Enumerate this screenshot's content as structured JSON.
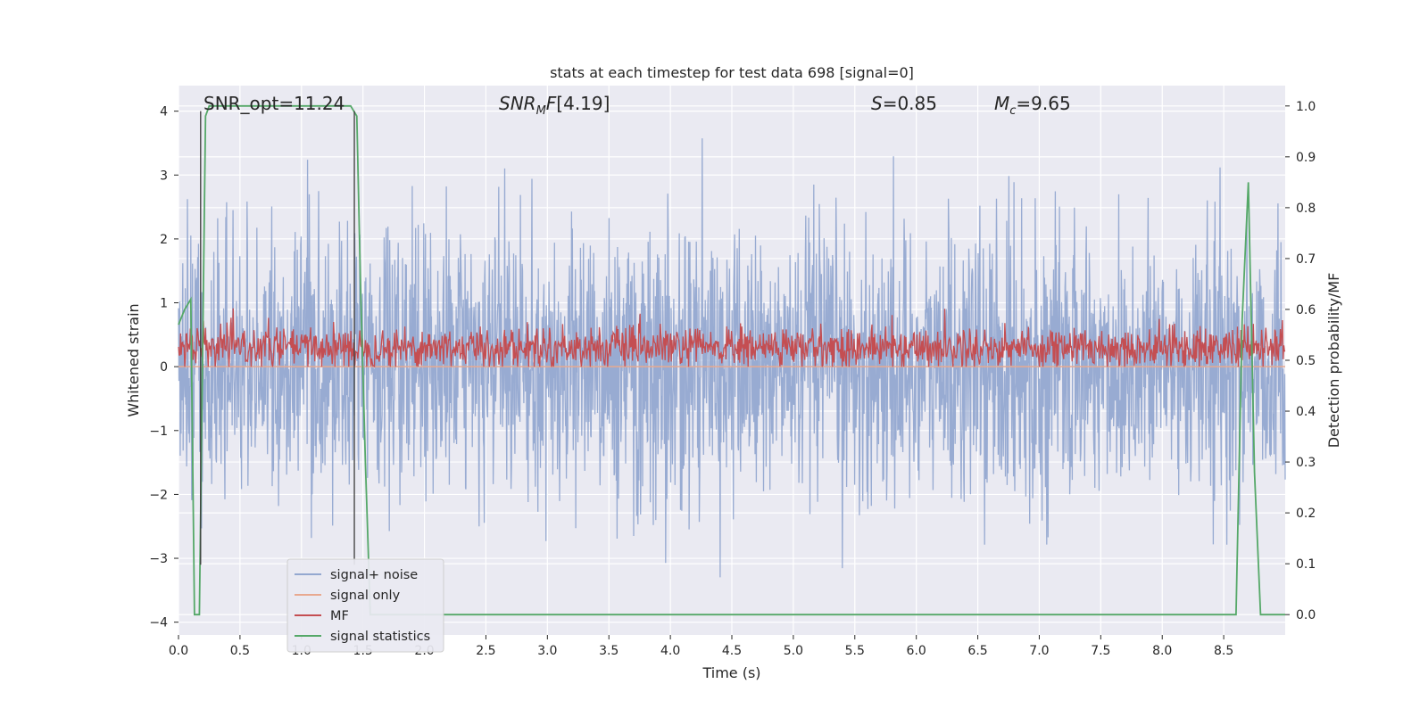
{
  "chart_data": {
    "type": "line",
    "title": "stats at each timestep for test data 698 [signal=0]",
    "xlabel": "Time (s)",
    "ylabel_left": "Whitened strain",
    "ylabel_right": "Detection probability/MF",
    "xlim": [
      0,
      9.0
    ],
    "ylim_left": [
      -4.2,
      4.4
    ],
    "ylim_right": [
      -0.04,
      1.04
    ],
    "x_ticks": [
      "0.0",
      "0.5",
      "1.0",
      "1.5",
      "2.0",
      "2.5",
      "3.0",
      "3.5",
      "4.0",
      "4.5",
      "5.0",
      "5.5",
      "6.0",
      "6.5",
      "7.0",
      "7.5",
      "8.0",
      "8.5"
    ],
    "left_ticks": [
      "4",
      "3",
      "2",
      "1",
      "0",
      "−1",
      "−2",
      "−3",
      "−4"
    ],
    "right_ticks": [
      "1.0",
      "0.9",
      "0.8",
      "0.7",
      "0.6",
      "0.5",
      "0.4",
      "0.3",
      "0.2",
      "0.1",
      "0.0"
    ],
    "grid": true,
    "legend_position": "lower-left",
    "annotations": {
      "snr_opt": "SNR_opt=11.24",
      "snr_mf": "[4.19]",
      "s": "=0.85",
      "mc": "=9.65"
    },
    "vlines_x": [
      0.18,
      1.43
    ],
    "series": [
      {
        "name": "signal+ noise",
        "color": "#94a8d0",
        "axis": "left",
        "description_stats": {
          "mean": 0.0,
          "spread_sigma": 1.05,
          "peak_max": 4.0,
          "peak_min": -3.6
        }
      },
      {
        "name": "signal only",
        "color": "#e8a990",
        "axis": "left",
        "values_constant": 0.0
      },
      {
        "name": "MF",
        "color": "#c44e52",
        "axis": "left",
        "description_stats": {
          "mean": 0.3,
          "min": 0.0,
          "max": 1.0
        }
      },
      {
        "name": "signal statistics",
        "color": "#55a868",
        "axis": "right",
        "x": [
          0.0,
          0.05,
          0.1,
          0.13,
          0.17,
          0.22,
          0.25,
          0.35,
          0.5,
          0.8,
          1.0,
          1.2,
          1.4,
          1.45,
          1.48,
          1.52,
          1.56,
          1.6,
          2.0,
          3.0,
          4.0,
          5.0,
          6.0,
          7.0,
          8.0,
          8.6,
          8.65,
          8.7,
          8.75,
          8.8,
          8.9,
          9.0
        ],
        "values": [
          0.57,
          0.6,
          0.62,
          0.0,
          0.0,
          0.98,
          1.0,
          1.0,
          1.0,
          1.0,
          1.0,
          1.0,
          1.0,
          0.98,
          0.65,
          0.3,
          0.0,
          0.0,
          0.0,
          0.0,
          0.0,
          0.0,
          0.0,
          0.0,
          0.0,
          0.0,
          0.58,
          0.85,
          0.28,
          0.0,
          0.0,
          0.0
        ]
      }
    ]
  }
}
